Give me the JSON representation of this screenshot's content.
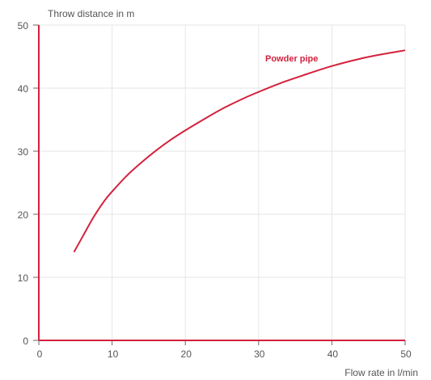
{
  "colors": {
    "accent": "#d4213d",
    "grid": "#e6e6e6",
    "text": "#555555",
    "tick": "#666666"
  },
  "chart_data": {
    "type": "line",
    "title": "",
    "ylabel": "Throw distance in m",
    "xlabel": "Flow rate in l/min",
    "xlim": [
      0,
      50
    ],
    "ylim": [
      0,
      50
    ],
    "x_ticks": [
      0,
      10,
      20,
      30,
      40,
      50
    ],
    "y_ticks": [
      0,
      10,
      20,
      30,
      40,
      50
    ],
    "grid": true,
    "series": [
      {
        "name": "Powder pipe",
        "x": [
          4.8,
          6,
          7.5,
          9,
          10,
          12,
          14,
          16,
          18,
          20,
          22,
          25,
          28,
          30,
          33,
          36,
          40,
          44,
          47,
          50
        ],
        "y": [
          14.0,
          16.5,
          19.6,
          22.2,
          23.6,
          26.1,
          28.2,
          30.1,
          31.8,
          33.3,
          34.7,
          36.7,
          38.4,
          39.4,
          40.8,
          42.0,
          43.5,
          44.7,
          45.4,
          46.0
        ]
      }
    ]
  }
}
